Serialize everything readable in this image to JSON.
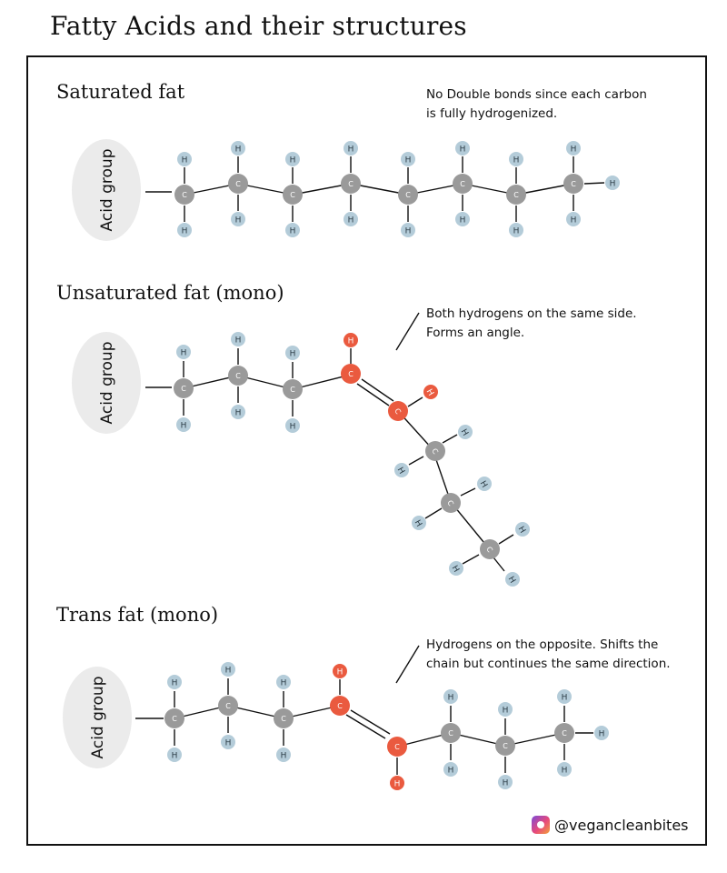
{
  "title": "Fatty Acids and their structures",
  "sections": [
    {
      "title": "Saturated fat",
      "acid_group_label": "Acid group",
      "note": "No Double bonds since each carbon\nis fully hydrogenized.",
      "has_pointer": false
    },
    {
      "title": "Unsaturated fat (mono)",
      "acid_group_label": "Acid group",
      "note": "Both hydrogens on the same side.\nForms an angle.",
      "has_pointer": true
    },
    {
      "title": "Trans fat (mono)",
      "acid_group_label": "Acid group",
      "note": "Hydrogens on the opposite. Shifts the\nchain but continues the same direction.",
      "has_pointer": true
    }
  ],
  "atom_labels": {
    "carbon": "C",
    "hydrogen": "H"
  },
  "colors": {
    "carbon": "#9a9a9a",
    "hydrogen": "#b4ccd9",
    "double_bond_atoms": "#ea5a3f",
    "acid_group_bg": "#ebebeb",
    "bond": "#111111"
  },
  "footer": {
    "handle": "@vegancleanbites",
    "icon": "instagram-icon"
  }
}
